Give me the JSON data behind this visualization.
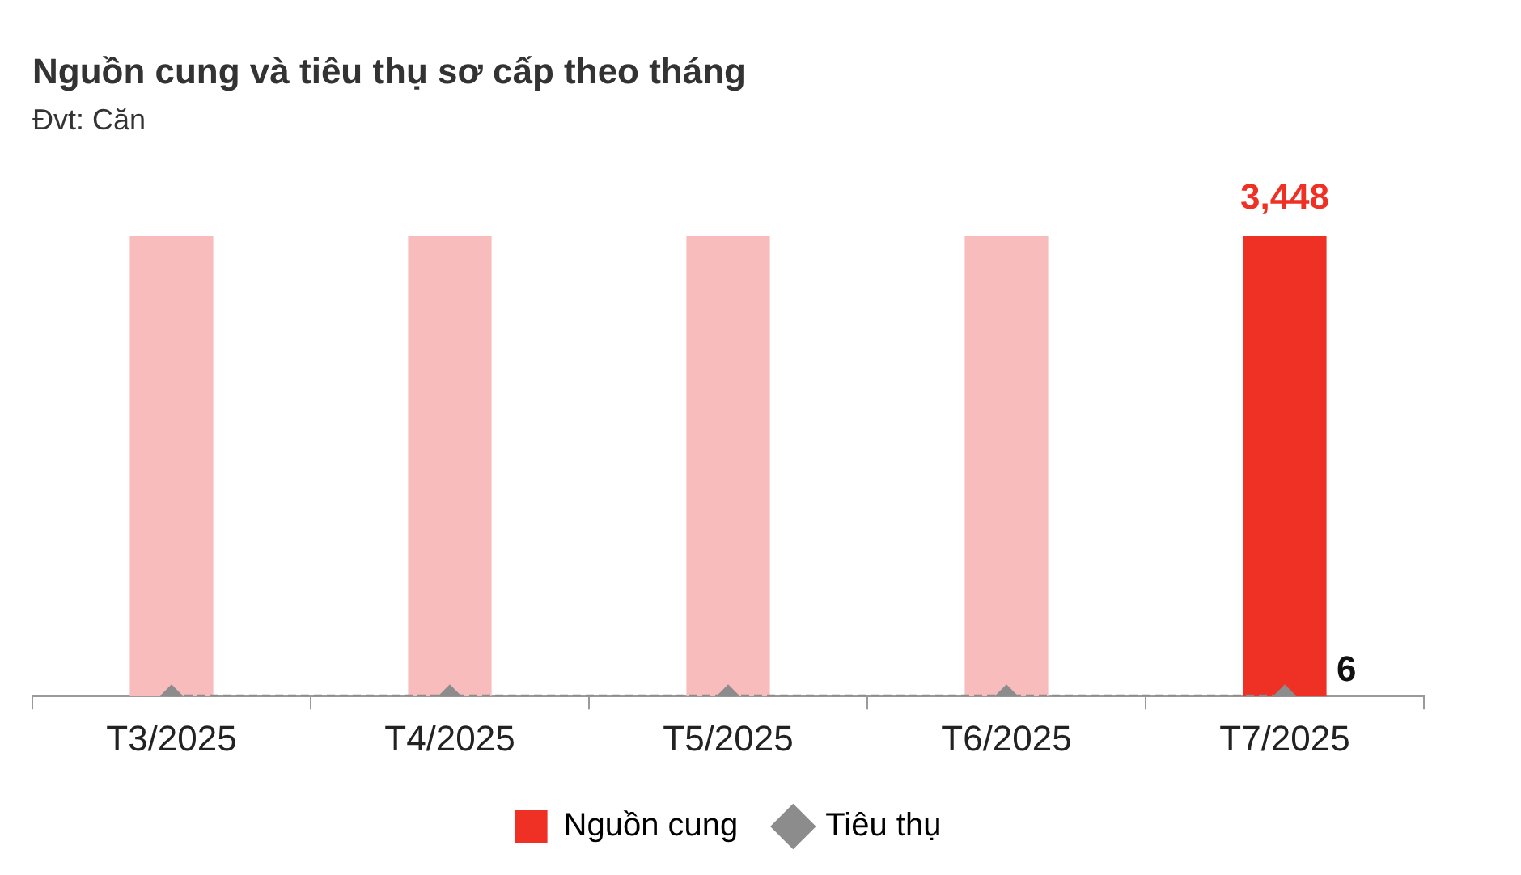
{
  "chart_data": {
    "type": "bar",
    "title": "Nguồn cung và tiêu thụ sơ cấp theo tháng",
    "subtitle": "Đvt: Căn",
    "categories": [
      "T3/2025",
      "T4/2025",
      "T5/2025",
      "T6/2025",
      "T7/2025"
    ],
    "series": [
      {
        "name": "Nguồn cung",
        "color": "#ee3124",
        "colors": [
          "#f9bcbc",
          "#f9bcbc",
          "#f9bcbc",
          "#f9bcbc",
          "#ee3124"
        ],
        "values": [
          3448,
          3448,
          3448,
          3448,
          3448
        ],
        "value_labels": [
          null,
          null,
          null,
          null,
          "3,448"
        ]
      },
      {
        "name": "Tiêu thụ",
        "type": "line",
        "color": "#8c8c8c",
        "values": [
          6,
          6,
          6,
          6,
          6
        ],
        "value_labels": [
          null,
          null,
          null,
          null,
          "6"
        ],
        "marker": "diamond",
        "line_style": "dashed"
      }
    ],
    "legend": "bottom",
    "grid": false,
    "tick_labels": "x"
  }
}
